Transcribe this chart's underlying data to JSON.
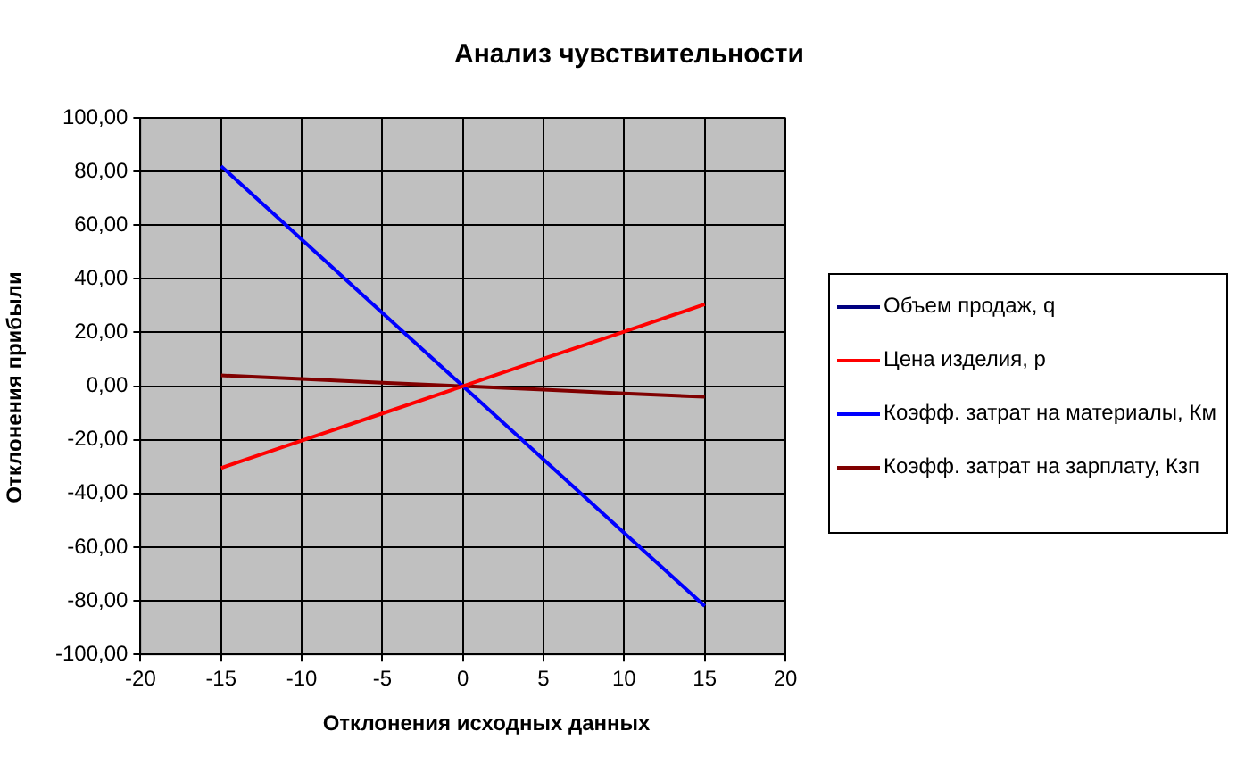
{
  "chart_data": {
    "type": "line",
    "title": "Анализ чувствительности",
    "xlabel": "Отклонения исходных данных",
    "ylabel": "Отклонения прибыли",
    "x": [
      -15,
      -10,
      -5,
      0,
      5,
      10,
      15
    ],
    "series": [
      {
        "name": "Объем продаж, q",
        "color": "#000080",
        "values": [
          null,
          null,
          null,
          null,
          null,
          null,
          null
        ]
      },
      {
        "name": "Цена изделия, p",
        "color": "#ff0000",
        "values": [
          -30.5,
          -20.3,
          -10.2,
          0,
          10.2,
          20.3,
          30.5
        ]
      },
      {
        "name": "Коэфф. затрат на материалы, Км",
        "color": "#0000ff",
        "values": [
          82,
          54.7,
          27.3,
          0,
          -27.3,
          -54.7,
          -82
        ]
      },
      {
        "name": "Коэфф. затрат на зарплату, Кзп",
        "color": "#800000",
        "values": [
          4,
          2.7,
          1.3,
          0,
          -1.3,
          -2.7,
          -4
        ]
      }
    ],
    "xlim": [
      -20,
      20
    ],
    "xticks": [
      -20,
      -15,
      -10,
      -5,
      0,
      5,
      10,
      15,
      20
    ],
    "ylim": [
      -100,
      100
    ],
    "yticks": [
      {
        "value": -100,
        "label": "-100,00"
      },
      {
        "value": -80,
        "label": "-80,00"
      },
      {
        "value": -60,
        "label": "-60,00"
      },
      {
        "value": -40,
        "label": "-40,00"
      },
      {
        "value": -20,
        "label": "-20,00"
      },
      {
        "value": 0,
        "label": "0,00"
      },
      {
        "value": 20,
        "label": "20,00"
      },
      {
        "value": 40,
        "label": "40,00"
      },
      {
        "value": 60,
        "label": "60,00"
      },
      {
        "value": 80,
        "label": "80,00"
      },
      {
        "value": 100,
        "label": "100,00"
      }
    ],
    "grid": true,
    "legend": "right",
    "marker": "none",
    "line_style": "solid"
  }
}
